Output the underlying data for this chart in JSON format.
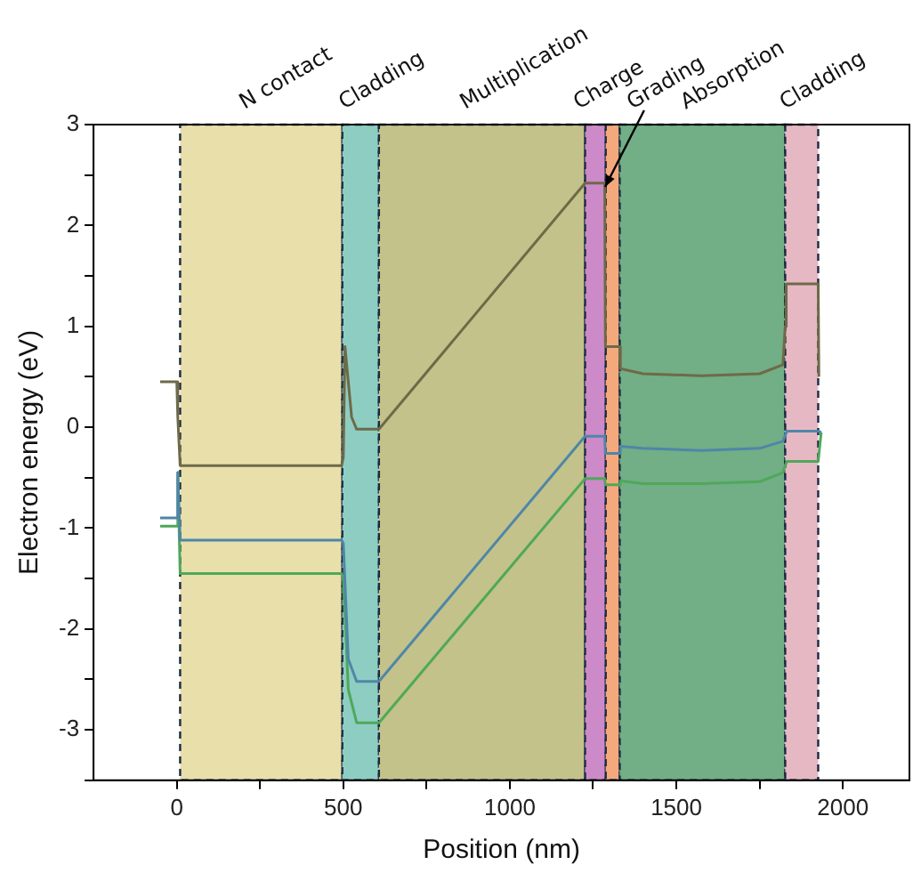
{
  "chart_data": {
    "type": "line",
    "xlabel": "Position (nm)",
    "ylabel": "Electron energy (eV)",
    "xlim": [
      -250,
      2200
    ],
    "ylim": [
      -3.5,
      3
    ],
    "xticks": [
      0,
      {
        "value": 250,
        "label": null
      },
      500,
      {
        "value": 750,
        "label": null
      },
      1000,
      {
        "value": 1250,
        "label": null
      },
      1500,
      {
        "value": 1750,
        "label": null
      },
      2000
    ],
    "yticks": [
      {
        "value": -3.5,
        "label": null
      },
      -3,
      {
        "value": -2.5,
        "label": null
      },
      -2,
      {
        "value": -1.5,
        "label": null
      },
      -1,
      {
        "value": -0.5,
        "label": null
      },
      0,
      {
        "value": 0.5,
        "label": null
      },
      1,
      {
        "value": 1.5,
        "label": null
      },
      2,
      {
        "value": 2.5,
        "label": null
      },
      3
    ],
    "grid": false,
    "legend": false,
    "bands": [
      {
        "axis": "x",
        "from": 10,
        "to": 497,
        "label": "N contact",
        "color": "#e8dfaa"
      },
      {
        "axis": "x",
        "from": 497,
        "to": 607,
        "label": "Cladding",
        "color": "#8ecdc2"
      },
      {
        "axis": "x",
        "from": 607,
        "to": 1226,
        "label": "Multiplication",
        "color": "#c2c28a"
      },
      {
        "axis": "x",
        "from": 1226,
        "to": 1288,
        "label": "Charge",
        "color": "#cc8ac8"
      },
      {
        "axis": "x",
        "from": 1288,
        "to": 1330,
        "label": "Grading",
        "color": "#f4a97c"
      },
      {
        "axis": "x",
        "from": 1330,
        "to": 1827,
        "label": "Absorption",
        "color": "#72ae86"
      },
      {
        "axis": "x",
        "from": 1827,
        "to": 1926,
        "label": "Cladding",
        "color": "#e6b8c4"
      }
    ],
    "series": [
      {
        "color": "#6e6a48",
        "x": [
          -50,
          0,
          3,
          10,
          495,
          500,
          505,
          525,
          540,
          607,
          1226,
          1285,
          1287,
          1330,
          1332,
          1400,
          1575,
          1750,
          1820,
          1827,
          1830,
          1922,
          1926,
          1928
        ],
        "values": [
          0.45,
          0.45,
          0.1,
          -0.38,
          -0.38,
          -0.3,
          0.8,
          0.1,
          -0.02,
          -0.02,
          2.42,
          2.42,
          0.8,
          0.8,
          0.58,
          0.53,
          0.51,
          0.53,
          0.62,
          1.0,
          1.42,
          1.42,
          1.42,
          0.5
        ]
      },
      {
        "color": "#4f86a8",
        "x": [
          -50,
          0,
          3,
          10,
          495,
          500,
          515,
          540,
          607,
          1226,
          1285,
          1287,
          1330,
          1332,
          1400,
          1575,
          1750,
          1820,
          1827,
          1832,
          1926,
          1935
        ],
        "values": [
          -0.9,
          -0.9,
          -0.45,
          -1.12,
          -1.12,
          -1.15,
          -2.3,
          -2.52,
          -2.52,
          -0.09,
          -0.09,
          -0.26,
          -0.26,
          -0.19,
          -0.21,
          -0.23,
          -0.21,
          -0.14,
          -0.08,
          -0.04,
          -0.04,
          -0.05
        ]
      },
      {
        "color": "#4fa85a",
        "x": [
          -50,
          0,
          3,
          10,
          495,
          500,
          515,
          540,
          607,
          1226,
          1285,
          1287,
          1330,
          1332,
          1400,
          1575,
          1750,
          1820,
          1827,
          1832,
          1926,
          1935
        ],
        "values": [
          -0.98,
          -0.98,
          -0.45,
          -1.45,
          -1.45,
          -1.5,
          -2.6,
          -2.93,
          -2.93,
          -0.51,
          -0.51,
          -0.57,
          -0.57,
          -0.53,
          -0.56,
          -0.56,
          -0.54,
          -0.45,
          -0.38,
          -0.34,
          -0.34,
          -0.05
        ]
      }
    ]
  }
}
